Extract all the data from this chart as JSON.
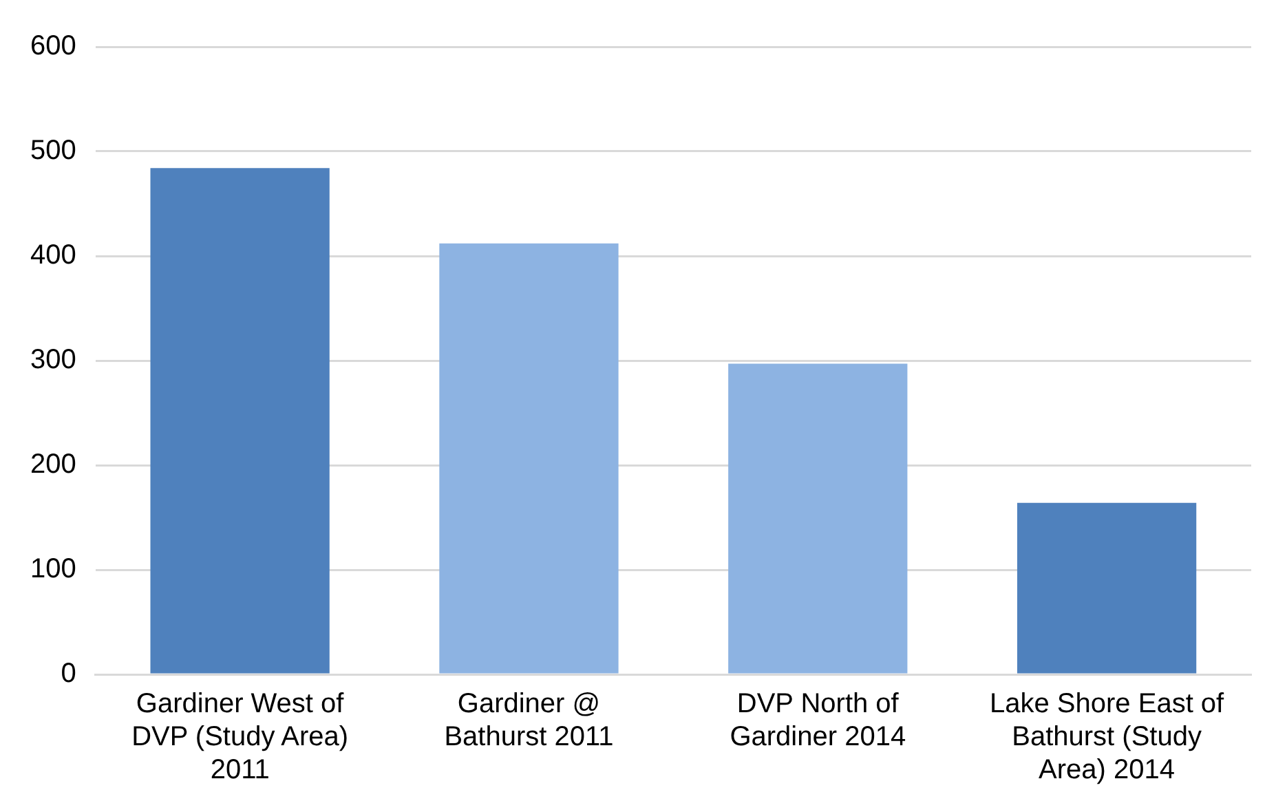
{
  "chart_data": {
    "type": "bar",
    "categories": [
      "Gardiner West of DVP (Study Area) 2011",
      "Gardiner @ Bathurst 2011",
      "DVP North of Gardiner 2014",
      "Lake Shore East of Bathurst (Study Area) 2014"
    ],
    "values": [
      484,
      412,
      297,
      164
    ],
    "colors": [
      "#4f81bd",
      "#8db3e2",
      "#8db3e2",
      "#4f81bd"
    ],
    "ylim": [
      0,
      600
    ],
    "yticks": [
      0,
      100,
      200,
      300,
      400,
      500,
      600
    ],
    "grid": "y",
    "legend": false
  }
}
